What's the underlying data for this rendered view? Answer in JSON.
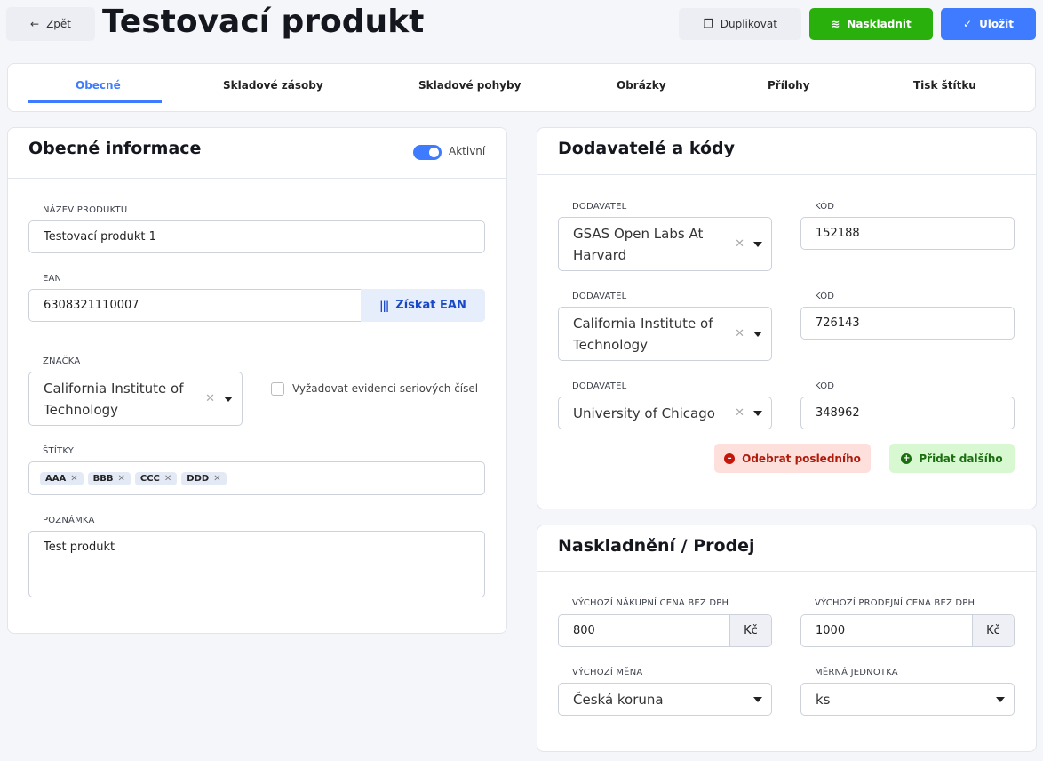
{
  "header": {
    "back_label": "Zpět",
    "title": "Testovací produkt",
    "duplicate_label": "Duplikovat",
    "stock_label": "Naskladnit",
    "save_label": "Uložit"
  },
  "colors": {
    "green": "#29b00d",
    "blue": "#3e7bff",
    "accent": "#3e7bff"
  },
  "tabs": [
    {
      "label": "Obecné",
      "active": true
    },
    {
      "label": "Skladové zásoby"
    },
    {
      "label": "Skladové pohyby"
    },
    {
      "label": "Obrázky"
    },
    {
      "label": "Přílohy"
    },
    {
      "label": "Tisk štítku"
    }
  ],
  "general": {
    "title": "Obecné informace",
    "active_label": "Aktivní",
    "active": true,
    "name_label": "NÁZEV PRODUKTU",
    "name_value": "Testovací produkt 1",
    "ean_label": "EAN",
    "ean_value": "6308321110007",
    "ean_button": "Získat EAN",
    "brand_label": "ZNAČKA",
    "brand_value": "California Institute of Technology",
    "serial_label": "Vyžadovat evidenci seriových čísel",
    "serial_checked": false,
    "tags_label": "ŠTÍTKY",
    "tags": [
      "AAA",
      "BBB",
      "CCC",
      "DDD"
    ],
    "note_label": "POZNÁMKA",
    "note_value": "Test produkt"
  },
  "suppliers": {
    "title": "Dodavatelé a kódy",
    "supplier_label": "DODAVATEL",
    "code_label": "KÓD",
    "rows": [
      {
        "supplier": "GSAS Open Labs At Harvard",
        "code": "152188"
      },
      {
        "supplier": "California Institute of Technology",
        "code": "726143"
      },
      {
        "supplier": "University of Chicago",
        "code": "348962"
      }
    ],
    "remove_label": "Odebrat posledního",
    "add_label": "Přidat dalšího"
  },
  "stock": {
    "title": "Naskladnění / Prodej",
    "buy_label": "VÝCHOZÍ NÁKUPNÍ CENA BEZ DPH",
    "buy_value": "800",
    "sell_label": "VÝCHOZÍ PRODEJNÍ CENA BEZ DPH",
    "sell_value": "1000",
    "currency_unit": "Kč",
    "currency_label": "VÝCHOZÍ MĚNA",
    "currency_value": "Česká koruna",
    "unit_label": "MĚRNÁ JEDNOTKA",
    "unit_value": "ks"
  }
}
